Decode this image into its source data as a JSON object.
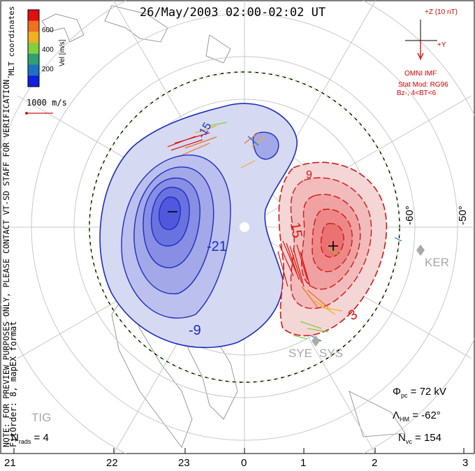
{
  "title": "26/May/2003 02:00-02:02 UT",
  "note": "NOTE: FOR PREVIEW PURPOSES ONLY, PLEASE CONTACT VT-SD STAFF FOR VERIFICATION.",
  "fit_info": "FitOrder: 8, mapEX format",
  "coordinate_system": "MLT coordinates",
  "velocity_scale": {
    "label": "Vel [m/s]",
    "ticks": [
      "600",
      "400",
      "200"
    ],
    "colors": [
      "#e01010",
      "#f07020",
      "#f0b020",
      "#80d040",
      "#30a070",
      "#2070c0",
      "#1020e0"
    ]
  },
  "vector_reference": "1000 m/s",
  "imf": {
    "z_label": "+Z (10 nT)",
    "y_label": "+Y",
    "source": "OMNI IMF",
    "stat_model": "Stat Mod: RG96",
    "condition": "Bz-, 4<BT<6"
  },
  "lat_labels": [
    "-60°",
    "-50°"
  ],
  "contours": {
    "negative_labels": [
      "-21",
      "-9",
      "-15"
    ],
    "positive_labels": [
      "15",
      "3",
      "9"
    ],
    "negative_color": "#1b2fbf",
    "positive_color": "#d01818"
  },
  "stations": [
    "KER",
    "SYE",
    "SYS",
    "TIG"
  ],
  "stats": {
    "phi_sym": "Φ",
    "phi_sub": "pc",
    "phi_value": "= 72 kV",
    "lambda_sym": "Λ",
    "lambda_sub": "HM",
    "lambda_value": "= -62°",
    "nvc_sym": "N",
    "nvc_sub": "vc",
    "nvc_value": "= 154",
    "nrads_sym": "N",
    "nrads_sub": "rads",
    "nrads_value": "= 4"
  },
  "mlt_axis": [
    "21",
    "22",
    "23",
    "0",
    "1",
    "2",
    "3"
  ]
}
